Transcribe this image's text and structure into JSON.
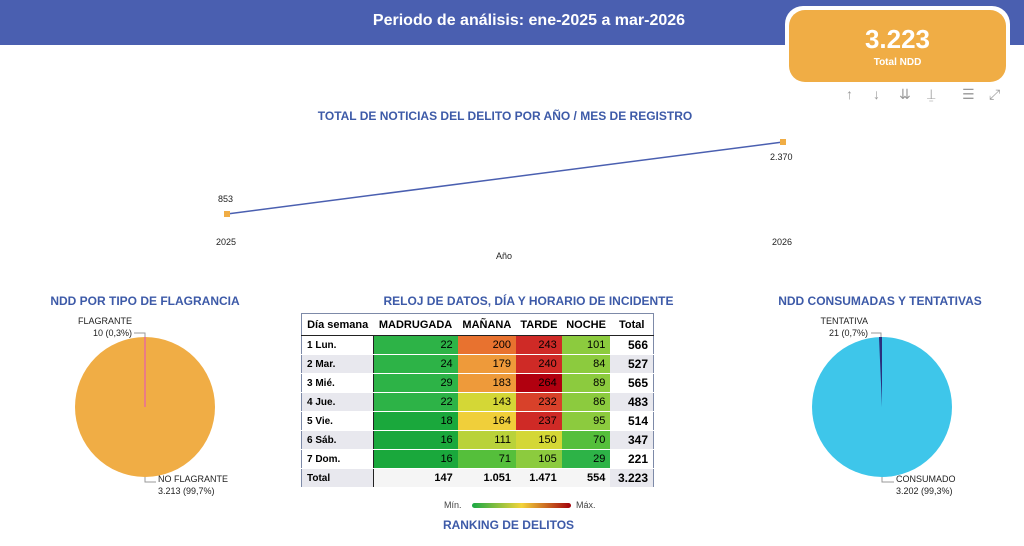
{
  "header": {
    "period": "Periodo de análisis: ene-2025 a mar-2026"
  },
  "kpi": {
    "value": "3.223",
    "label": "Total NDD"
  },
  "toolbar_icons": [
    "arrow-up-icon",
    "arrow-down-icon",
    "double-arrow-down-icon",
    "expand-hierarchy-icon",
    "filter-icon",
    "focus-mode-icon"
  ],
  "line_chart": {
    "title": "TOTAL DE NOTICIAS DEL DELITO POR AÑO / MES DE REGISTRO",
    "xlabel": "Año",
    "color": "#4a5fb0",
    "marker_color": "#f0ad45"
  },
  "pie_flagrancia": {
    "title": "NDD POR TIPO DE FLAGRANCIA",
    "label_a": "FLAGRANTE",
    "value_a": "10 (0,3%)",
    "label_b": "NO FLAGRANTE",
    "value_b": "3.213 (99,7%)",
    "color": "#f0ad45"
  },
  "heatmap": {
    "title": "RELOJ DE DATOS, DÍA Y HORARIO DE INCIDENTE",
    "headers": [
      "Día semana",
      "MADRUGADA",
      "MAÑANA",
      "TARDE",
      "NOCHE",
      "Total"
    ],
    "rows": [
      {
        "day": "1 Lun.",
        "cells": [
          "22",
          "200",
          "243",
          "101"
        ],
        "total": "566"
      },
      {
        "day": "2 Mar.",
        "cells": [
          "24",
          "179",
          "240",
          "84"
        ],
        "total": "527"
      },
      {
        "day": "3 Mié.",
        "cells": [
          "29",
          "183",
          "264",
          "89"
        ],
        "total": "565"
      },
      {
        "day": "4 Jue.",
        "cells": [
          "22",
          "143",
          "232",
          "86"
        ],
        "total": "483"
      },
      {
        "day": "5 Vie.",
        "cells": [
          "18",
          "164",
          "237",
          "95"
        ],
        "total": "514"
      },
      {
        "day": "6 Sáb.",
        "cells": [
          "16",
          "111",
          "150",
          "70"
        ],
        "total": "347"
      },
      {
        "day": "7 Dom.",
        "cells": [
          "16",
          "71",
          "105",
          "29"
        ],
        "total": "221"
      }
    ],
    "total_row": {
      "day": "Total",
      "cells": [
        "147",
        "1.051",
        "1.471",
        "554"
      ],
      "total": "3.223"
    },
    "legend_min": "Mín.",
    "legend_max": "Máx."
  },
  "pie_consumadas": {
    "title": "NDD CONSUMADAS Y TENTATIVAS",
    "label_a": "TENTATIVA",
    "value_a": "21 (0,7%)",
    "label_b": "CONSUMADO",
    "value_b": "3.202 (99,3%)",
    "color": "#3ec6ea"
  },
  "ranking": {
    "title": "RANKING DE DELITOS"
  },
  "chart_data": {
    "type": "line",
    "title": "TOTAL DE NOTICIAS DEL DELITO POR AÑO / MES DE REGISTRO",
    "xlabel": "Año",
    "ylabel": "",
    "categories": [
      "2025",
      "2026"
    ],
    "values": [
      853,
      2370
    ],
    "data_labels": [
      "853",
      "2.370"
    ]
  }
}
